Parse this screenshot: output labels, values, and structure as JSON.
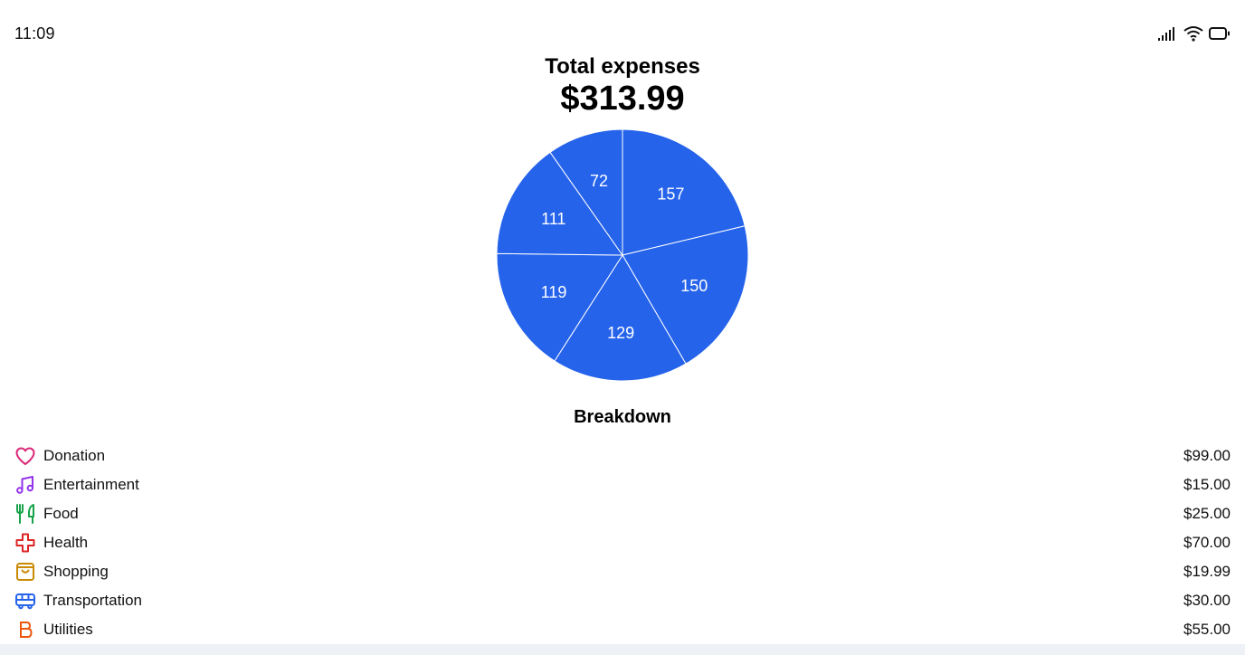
{
  "status_bar": {
    "time": "11:09",
    "icons": [
      "signal-icon",
      "wifi-icon",
      "battery-icon"
    ]
  },
  "header": {
    "title": "Total expenses",
    "total": "$313.99"
  },
  "colors": {
    "slice": "#2563eb",
    "donation": "#db2777",
    "entertainment": "#9333ea",
    "food": "#16a34a",
    "health": "#dc2626",
    "shopping": "#ca8a04",
    "transportation": "#2563eb",
    "utilities": "#ea580c"
  },
  "chart_data": {
    "type": "pie",
    "values": [
      157,
      150,
      129,
      119,
      111,
      72
    ],
    "labels": [
      "157",
      "150",
      "129",
      "119",
      "111",
      "72"
    ],
    "color": "#2563eb"
  },
  "breakdown": {
    "title": "Breakdown",
    "items": [
      {
        "name": "Donation",
        "amount": "$99.00",
        "icon": "heart-icon"
      },
      {
        "name": "Entertainment",
        "amount": "$15.00",
        "icon": "music-note-icon"
      },
      {
        "name": "Food",
        "amount": "$25.00",
        "icon": "utensils-icon"
      },
      {
        "name": "Health",
        "amount": "$70.00",
        "icon": "medical-cross-icon"
      },
      {
        "name": "Shopping",
        "amount": "$19.99",
        "icon": "shopping-bag-icon"
      },
      {
        "name": "Transportation",
        "amount": "$30.00",
        "icon": "bus-icon"
      },
      {
        "name": "Utilities",
        "amount": "$55.00",
        "icon": "bitcoin-icon"
      }
    ]
  }
}
